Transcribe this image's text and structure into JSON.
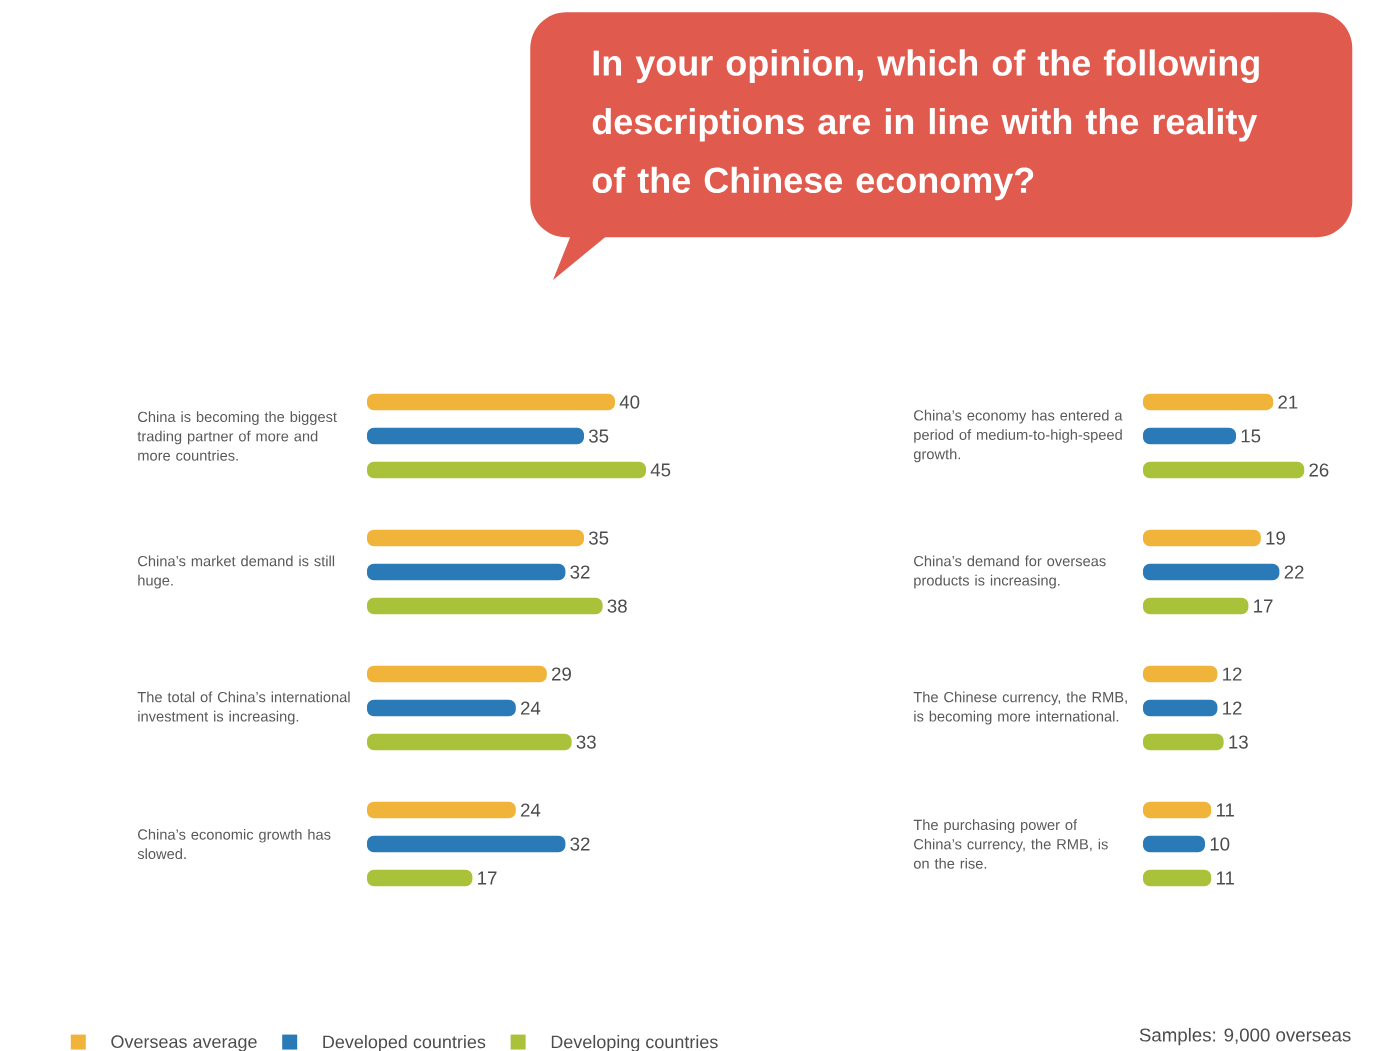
{
  "chart_data": [
    {
      "type": "bar",
      "orientation": "horizontal",
      "categories": [
        "China is becoming the biggest trading partner of more and more countries.",
        "China’s market demand is still huge.",
        "The total of China’s international investment is increasing.",
        "China’s economic growth has slowed."
      ],
      "series": [
        {
          "name": "Overseas average",
          "color": "#f0b43a",
          "values": [
            40,
            35,
            29,
            24
          ]
        },
        {
          "name": "Developed countries",
          "color": "#2a7ab8",
          "values": [
            35,
            32,
            24,
            32
          ]
        },
        {
          "name": "Developing countries",
          "color": "#a9c23a",
          "values": [
            45,
            38,
            33,
            17
          ]
        }
      ],
      "data_labels": true,
      "legend": "bottom"
    },
    {
      "type": "bar",
      "orientation": "horizontal",
      "title": "In your opinion, which of the following descriptions are in line with the reality of the Chinese economy?",
      "categories": [
        "China’s economy has entered a period of medium-to-high-speed growth.",
        "China’s demand for overseas products is increasing.",
        "The Chinese currency, the RMB, is becoming more international.",
        "The purchasing power of China’s currency, the RMB, is on the rise."
      ],
      "series": [
        {
          "color": "#f0b43a",
          "values": [
            21,
            19,
            12,
            11
          ]
        },
        {
          "color": "#2a7ab8",
          "values": [
            15,
            22,
            12,
            10
          ]
        },
        {
          "color": "#a9c23a",
          "values": [
            26,
            17,
            13,
            11
          ]
        }
      ],
      "data_labels": true,
      "annotations": [
        "Samples: 9,000 overseas"
      ]
    }
  ]
}
